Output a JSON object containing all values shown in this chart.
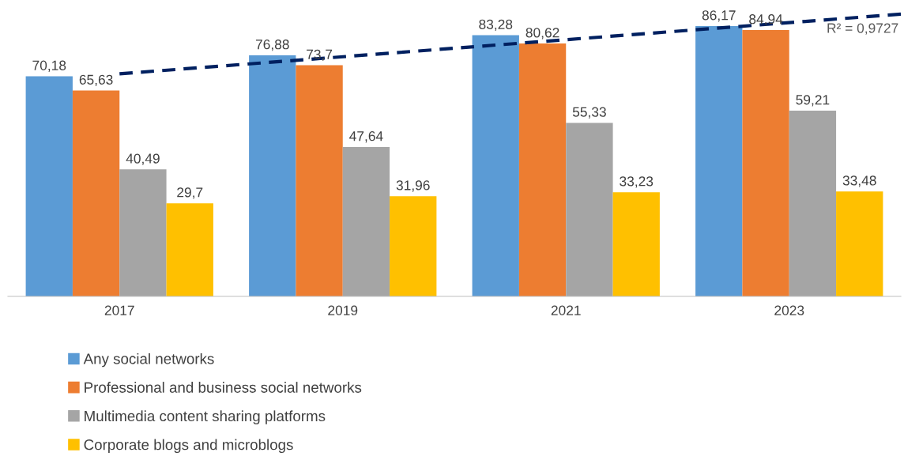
{
  "chart_data": {
    "type": "bar",
    "x": [
      2017,
      2019,
      2021,
      2023
    ],
    "xlim": [
      2016,
      2024
    ],
    "xticks": [
      2017,
      2019,
      2021,
      2023
    ],
    "tick_labels": "x",
    "grid": false,
    "legend": "bottom",
    "series": [
      {
        "name": "Any social networks",
        "color": "#5b9bd5",
        "values": [
          70.18,
          76.88,
          83.28,
          86.17
        ],
        "value_labels": [
          "70,18",
          "76,88",
          "83,28",
          "86,17"
        ]
      },
      {
        "name": "Professional and business social networks",
        "color": "#ed7d31",
        "values": [
          65.63,
          73.7,
          80.62,
          84.94
        ],
        "value_labels": [
          "65,63",
          "73,7",
          "80,62",
          "84,94"
        ]
      },
      {
        "name": "Multimedia content sharing platforms",
        "color": "#a5a5a5",
        "values": [
          40.49,
          47.64,
          55.33,
          59.21
        ],
        "value_labels": [
          "40,49",
          "47,64",
          "55,33",
          "59,21"
        ]
      },
      {
        "name": "Corporate blogs and microblogs",
        "color": "#ffc000",
        "values": [
          29.7,
          31.96,
          33.23,
          33.48
        ],
        "value_labels": [
          "29,7",
          "31,96",
          "33,23",
          "33,48"
        ]
      },
      {
        "type": "line",
        "color": "#002060",
        "line_style": "dashed",
        "x": [
          2017,
          2024
        ],
        "values": [
          70.97,
          90.0
        ]
      }
    ],
    "annotations": [
      {
        "text": "R² = 0,9727",
        "x": 2024,
        "y": 90.0
      }
    ]
  }
}
